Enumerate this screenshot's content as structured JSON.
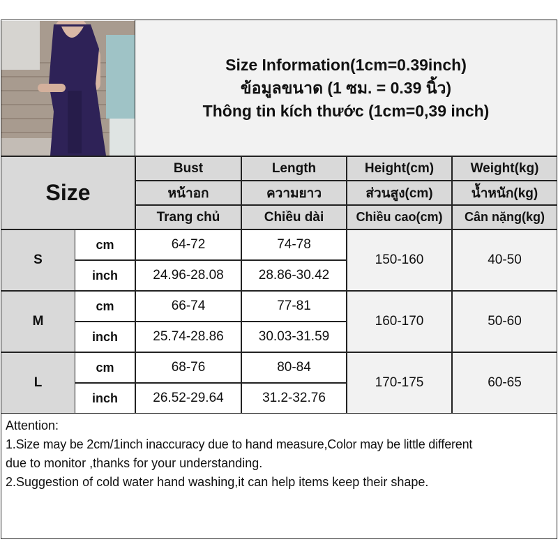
{
  "title": {
    "line1": "Size Information(1cm=0.39inch)",
    "line2": "ข้อมูลขนาด (1 ซม. = 0.39 นิ้ว)",
    "line3": "Thông tin kích thước (1cm=0,39 inch)"
  },
  "table": {
    "size_label": "Size",
    "headers": [
      {
        "en": "Bust",
        "th": "หน้าอก",
        "vi": "Trang chủ"
      },
      {
        "en": "Length",
        "th": "ความยาว",
        "vi": "Chiều dài"
      },
      {
        "en": "Height(cm)",
        "th": "ส่วนสูง(cm)",
        "vi": "Chiều cao(cm)"
      },
      {
        "en": "Weight(kg)",
        "th": "น้ำหนัก(kg)",
        "vi": "Cân nặng(kg)"
      }
    ],
    "rows": [
      {
        "size": "S",
        "cm_label": "cm",
        "inch_label": "inch",
        "bust_cm": "64-72",
        "length_cm": "74-78",
        "bust_inch": "24.96-28.08",
        "length_inch": "28.86-30.42",
        "height": "150-160",
        "weight": "40-50"
      },
      {
        "size": "M",
        "cm_label": "cm",
        "inch_label": "inch",
        "bust_cm": "66-74",
        "length_cm": "77-81",
        "bust_inch": "25.74-28.86",
        "length_inch": "30.03-31.59",
        "height": "160-170",
        "weight": "50-60"
      },
      {
        "size": "L",
        "cm_label": "cm",
        "inch_label": "inch",
        "bust_cm": "68-76",
        "length_cm": "80-84",
        "bust_inch": "26.52-29.64",
        "length_inch": "31.2-32.76",
        "height": "170-175",
        "weight": "60-65"
      }
    ]
  },
  "attention": {
    "heading": "Attention:",
    "line1": "1.Size may be 2cm/1inch inaccuracy due to hand measure,Color may be little different",
    "line2": "due to monitor ,thanks for your understanding.",
    "line3": "2.Suggestion of cold water hand washing,it can help items keep their shape."
  },
  "colors": {
    "header_bg": "#d9d9d9",
    "title_bg": "#f2f2f2",
    "dress": "#2e2257"
  }
}
